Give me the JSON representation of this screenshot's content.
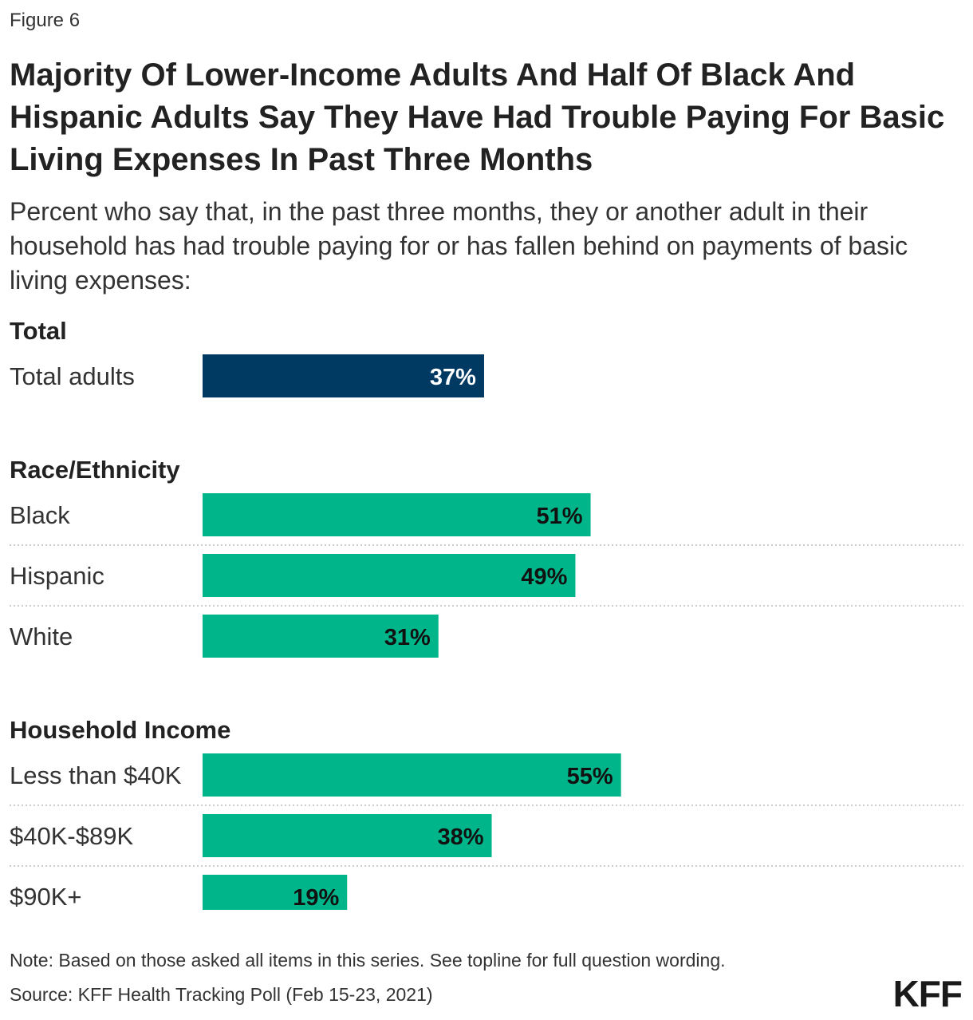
{
  "figure_label": "Figure 6",
  "title": "Majority Of Lower-Income Adults And Half Of Black And Hispanic Adults Say They Have Had Trouble Paying For Basic Living Expenses In Past Three Months",
  "subtitle": "Percent who say that, in the past three months, they or another adult in their household has had trouble paying for or has fallen behind on payments of basic living expenses:",
  "note": "Note: Based on those asked all items in this series. See topline for full question wording.",
  "source": "Source: KFF Health Tracking Poll (Feb 15-23, 2021)",
  "logo": "KFF",
  "colors": {
    "total": "#003a63",
    "group": "#00b58a"
  },
  "chart_data": {
    "type": "bar",
    "orientation": "horizontal",
    "value_suffix": "%",
    "xlim": [
      0,
      100
    ],
    "groups": [
      {
        "name": "Total",
        "categories": [
          "Total adults"
        ],
        "values": [
          37
        ]
      },
      {
        "name": "Race/Ethnicity",
        "categories": [
          "Black",
          "Hispanic",
          "White"
        ],
        "values": [
          51,
          49,
          31
        ]
      },
      {
        "name": "Household Income",
        "categories": [
          "Less than $40K",
          "$40K-$89K",
          "$90K+"
        ],
        "values": [
          55,
          38,
          19
        ]
      }
    ]
  }
}
